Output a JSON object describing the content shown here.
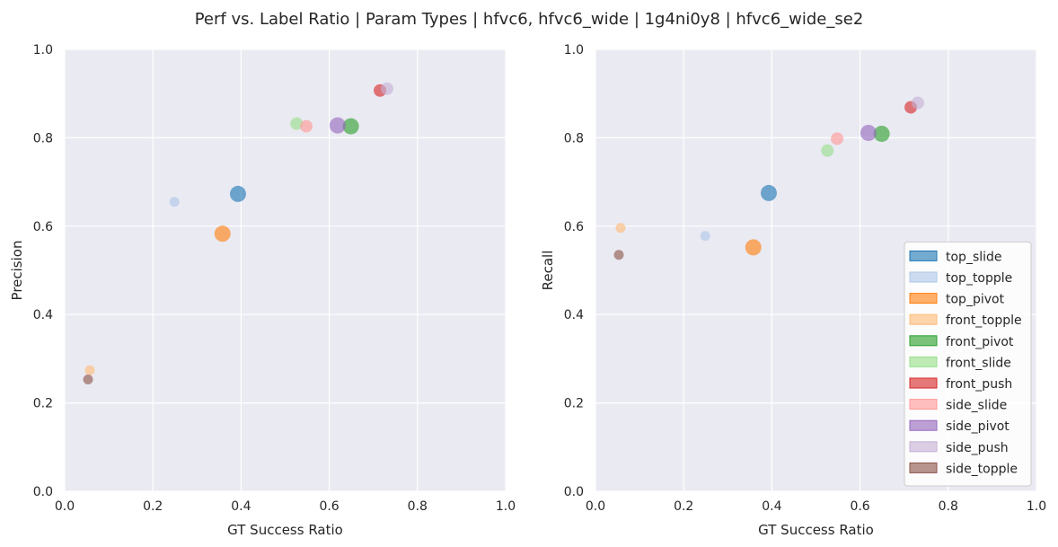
{
  "figure": {
    "title": "Perf vs. Label Ratio | Param Types | hfvc6, hfvc6_wide | 1g4ni0y8 | hfvc6_wide_se2"
  },
  "chart_data": [
    {
      "type": "scatter",
      "xlabel": "GT Success Ratio",
      "ylabel": "Precision",
      "xlim": [
        0,
        1
      ],
      "ylim": [
        0,
        1
      ],
      "xticks": [
        "0.0",
        "0.2",
        "0.4",
        "0.6",
        "0.8",
        "1.0"
      ],
      "yticks": [
        "0.0",
        "0.2",
        "0.4",
        "0.6",
        "0.8",
        "1.0"
      ],
      "grid": true,
      "points": [
        {
          "category": "top_slide",
          "x": 0.393,
          "y": 0.673,
          "size": "large"
        },
        {
          "category": "top_topple",
          "x": 0.249,
          "y": 0.655,
          "size": "small"
        },
        {
          "category": "top_pivot",
          "x": 0.358,
          "y": 0.583,
          "size": "large"
        },
        {
          "category": "front_topple",
          "x": 0.057,
          "y": 0.274,
          "size": "small"
        },
        {
          "category": "front_pivot",
          "x": 0.649,
          "y": 0.826,
          "size": "large"
        },
        {
          "category": "front_slide",
          "x": 0.526,
          "y": 0.832,
          "size": "medium"
        },
        {
          "category": "front_push",
          "x": 0.715,
          "y": 0.907,
          "size": "medium"
        },
        {
          "category": "side_slide",
          "x": 0.548,
          "y": 0.826,
          "size": "medium"
        },
        {
          "category": "side_pivot",
          "x": 0.619,
          "y": 0.828,
          "size": "large"
        },
        {
          "category": "side_push",
          "x": 0.731,
          "y": 0.911,
          "size": "medium"
        },
        {
          "category": "side_topple",
          "x": 0.053,
          "y": 0.253,
          "size": "small"
        }
      ]
    },
    {
      "type": "scatter",
      "xlabel": "GT Success Ratio",
      "ylabel": "Recall",
      "xlim": [
        0,
        1
      ],
      "ylim": [
        0,
        1
      ],
      "xticks": [
        "0.0",
        "0.2",
        "0.4",
        "0.6",
        "0.8",
        "1.0"
      ],
      "yticks": [
        "0.0",
        "0.2",
        "0.4",
        "0.6",
        "0.8",
        "1.0"
      ],
      "grid": true,
      "legend_position": "bottom-right",
      "points": [
        {
          "category": "top_slide",
          "x": 0.393,
          "y": 0.675,
          "size": "large"
        },
        {
          "category": "top_topple",
          "x": 0.249,
          "y": 0.578,
          "size": "small"
        },
        {
          "category": "top_pivot",
          "x": 0.358,
          "y": 0.552,
          "size": "large"
        },
        {
          "category": "front_topple",
          "x": 0.057,
          "y": 0.596,
          "size": "small"
        },
        {
          "category": "front_pivot",
          "x": 0.649,
          "y": 0.809,
          "size": "large"
        },
        {
          "category": "front_slide",
          "x": 0.526,
          "y": 0.771,
          "size": "medium"
        },
        {
          "category": "front_push",
          "x": 0.715,
          "y": 0.869,
          "size": "medium"
        },
        {
          "category": "side_slide",
          "x": 0.548,
          "y": 0.798,
          "size": "medium"
        },
        {
          "category": "side_pivot",
          "x": 0.619,
          "y": 0.811,
          "size": "large"
        },
        {
          "category": "side_push",
          "x": 0.731,
          "y": 0.879,
          "size": "medium"
        },
        {
          "category": "side_topple",
          "x": 0.053,
          "y": 0.535,
          "size": "small"
        }
      ]
    }
  ],
  "legend": [
    {
      "label": "top_slide",
      "color": "#1f77b4"
    },
    {
      "label": "top_topple",
      "color": "#aec7e8"
    },
    {
      "label": "top_pivot",
      "color": "#ff7f0e"
    },
    {
      "label": "front_topple",
      "color": "#ffbb78"
    },
    {
      "label": "front_pivot",
      "color": "#2ca02c"
    },
    {
      "label": "front_slide",
      "color": "#98df8a"
    },
    {
      "label": "front_push",
      "color": "#d62728"
    },
    {
      "label": "side_slide",
      "color": "#ff9896"
    },
    {
      "label": "side_pivot",
      "color": "#9467bd"
    },
    {
      "label": "side_push",
      "color": "#c5b0d5"
    },
    {
      "label": "side_topple",
      "color": "#8c564b"
    }
  ]
}
